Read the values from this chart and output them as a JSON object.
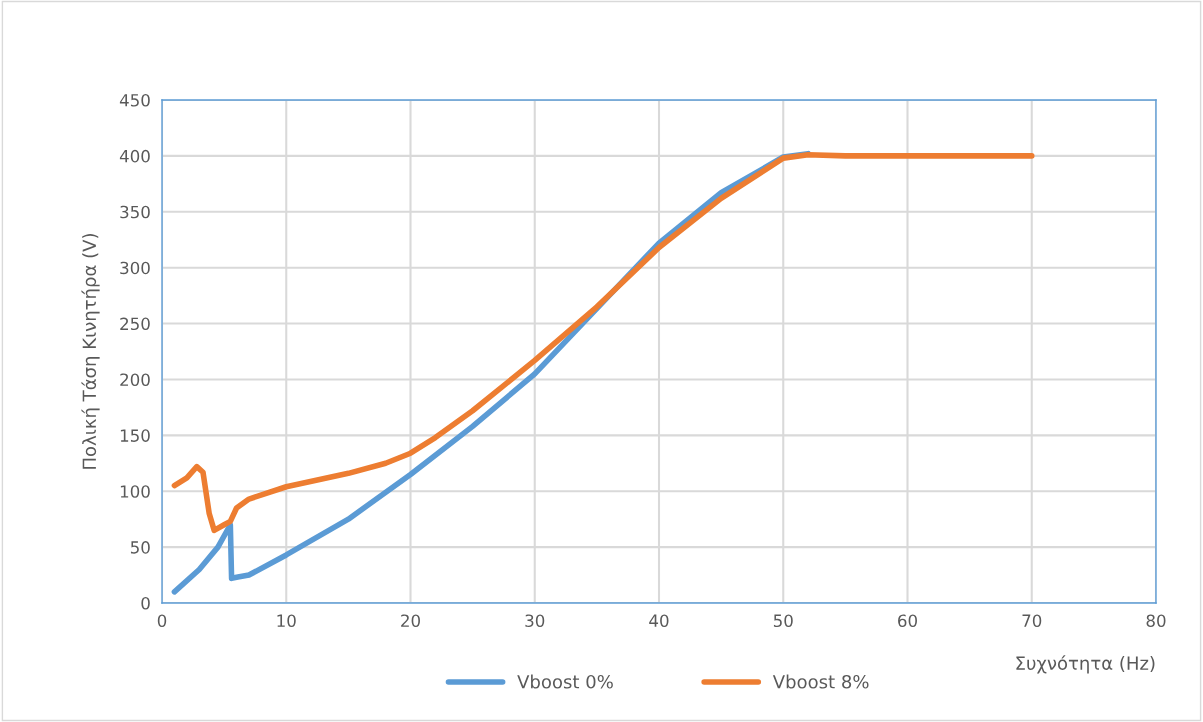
{
  "chart_data": {
    "type": "line",
    "xlabel": "Συχνότητα (Hz)",
    "ylabel": "Πολική Τάση Κινητήρα (V)",
    "xlim": [
      0,
      80
    ],
    "xticks": [
      0,
      10,
      20,
      30,
      40,
      50,
      60,
      70,
      80
    ],
    "ylim": [
      0,
      450
    ],
    "yticks": [
      0,
      50,
      100,
      150,
      200,
      250,
      300,
      350,
      400,
      450
    ],
    "grid": true,
    "legend": "bottom",
    "marker": "none",
    "line_style": "solid",
    "series": [
      {
        "name": "Vboost 0%",
        "color": "#5b9bd5",
        "x": [
          1,
          3,
          4.5,
          5.5,
          5.6,
          6,
          7,
          10,
          15,
          20,
          25,
          30,
          40,
          45,
          50,
          52
        ],
        "values": [
          10,
          30,
          50,
          70,
          22,
          23,
          25,
          43,
          75,
          115,
          158,
          205,
          322,
          367,
          399,
          402
        ]
      },
      {
        "name": "Vboost 8%",
        "color": "#ed7d31",
        "x": [
          1,
          2,
          2.8,
          3.3,
          3.8,
          4.2,
          5,
          5.5,
          6,
          7,
          10,
          15,
          18,
          20,
          22,
          25,
          30,
          35,
          40,
          45,
          50,
          52,
          55,
          70
        ],
        "values": [
          105,
          112,
          122,
          117,
          80,
          65,
          70,
          73,
          85,
          93,
          104,
          116,
          125,
          134,
          148,
          172,
          217,
          265,
          318,
          362,
          398,
          401,
          400,
          400
        ]
      }
    ]
  }
}
